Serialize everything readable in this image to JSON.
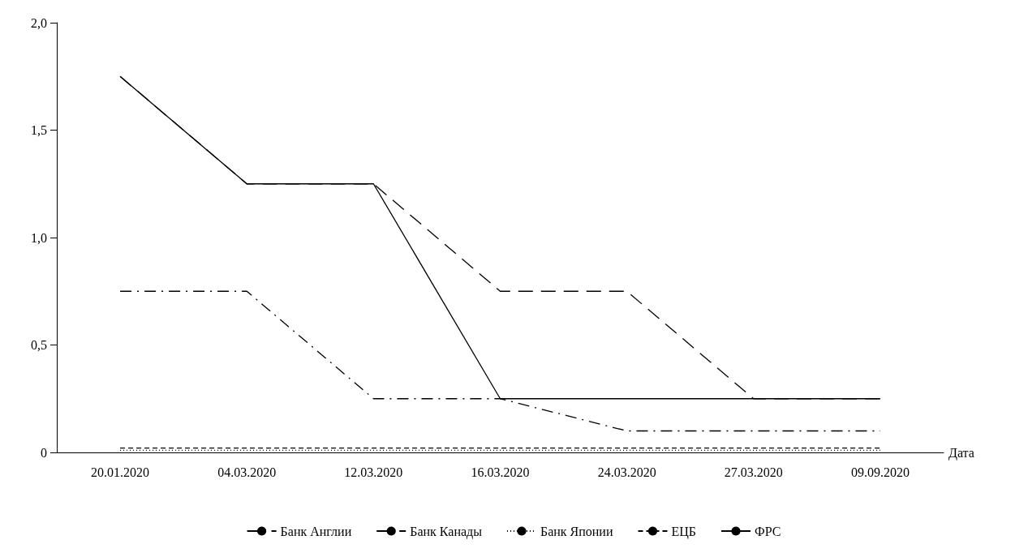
{
  "chart_data": {
    "type": "line",
    "xlabel": "Дата",
    "categories": [
      "20.01.2020",
      "04.03.2020",
      "12.03.2020",
      "16.03.2020",
      "24.03.2020",
      "27.03.2020",
      "09.09.2020"
    ],
    "ylim": [
      0,
      2
    ],
    "yticks": [
      {
        "value": 0,
        "label": "0"
      },
      {
        "value": 0.5,
        "label": "0,5"
      },
      {
        "value": 1,
        "label": "1,0"
      },
      {
        "value": 1.5,
        "label": "1,5"
      },
      {
        "value": 2,
        "label": "2,0"
      }
    ],
    "grid": false,
    "legend": "bottom",
    "marker": "none",
    "series": [
      {
        "name": "Банк Англии",
        "color": "#000000",
        "line_style": "dashdot",
        "values": [
          0.75,
          0.75,
          0.25,
          0.25,
          0.1,
          0.1,
          0.1
        ]
      },
      {
        "name": "Банк Канады",
        "color": "#000000",
        "line_style": "longdash",
        "values": [
          1.75,
          1.25,
          1.25,
          0.75,
          0.75,
          0.25,
          0.25
        ]
      },
      {
        "name": "Банк Японии",
        "color": "#000000",
        "line_style": "dotted",
        "values": [
          0.01,
          0.01,
          0.01,
          0.01,
          0.01,
          0.01,
          0.01
        ]
      },
      {
        "name": "ЕЦБ",
        "color": "#000000",
        "line_style": "dashed",
        "values": [
          0.02,
          0.02,
          0.02,
          0.02,
          0.02,
          0.02,
          0.02
        ]
      },
      {
        "name": "ФРС",
        "color": "#000000",
        "line_style": "solid",
        "values": [
          1.75,
          1.25,
          1.25,
          0.25,
          0.25,
          0.25,
          0.25
        ]
      }
    ]
  }
}
